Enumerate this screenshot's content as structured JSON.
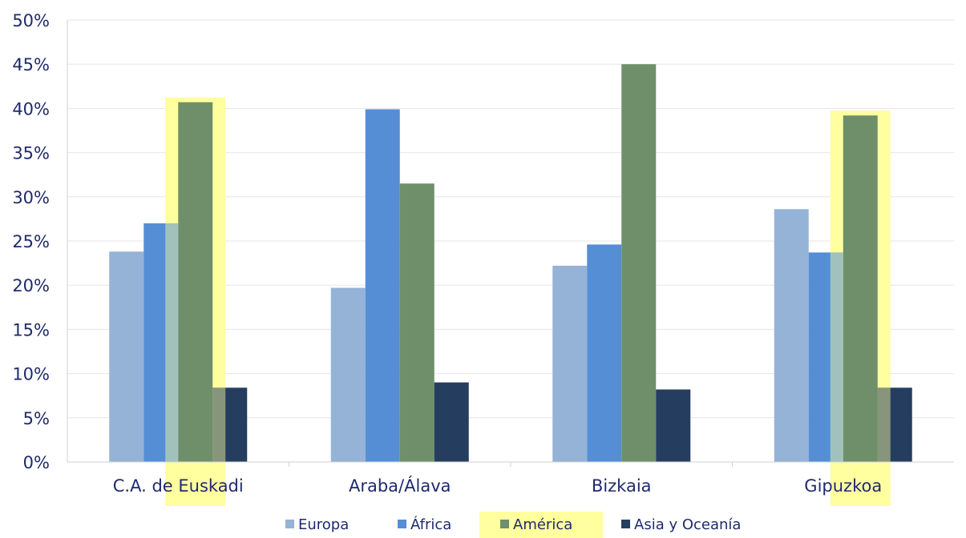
{
  "chart_data": {
    "type": "bar",
    "title": "",
    "xlabel": "",
    "ylabel": "",
    "ylim": [
      0,
      50
    ],
    "yticks": [
      0,
      5,
      10,
      15,
      20,
      25,
      30,
      35,
      40,
      45,
      50
    ],
    "ytick_labels": [
      "0%",
      "5%",
      "10%",
      "15%",
      "20%",
      "25%",
      "30%",
      "35%",
      "40%",
      "45%",
      "50%"
    ],
    "grid": true,
    "legend_placement": "bottom",
    "categories": [
      "C.A. de Euskadi",
      "Araba/Álava",
      "Bizkaia",
      "Gipuzkoa"
    ],
    "series": [
      {
        "name": "Europa",
        "color": "#95b3d7",
        "values": [
          23.8,
          19.7,
          22.2,
          28.6
        ]
      },
      {
        "name": "África",
        "color": "#558ed5",
        "values": [
          27.0,
          39.9,
          24.6,
          23.7
        ]
      },
      {
        "name": "América",
        "color": "#6f8f6a",
        "values": [
          40.7,
          31.5,
          45.0,
          39.2
        ]
      },
      {
        "name": "Asia y Oceanía",
        "color": "#253e5f",
        "values": [
          8.4,
          9.0,
          8.2,
          8.4
        ]
      }
    ],
    "highlight": {
      "series": "América",
      "categories": [
        "C.A. de Euskadi",
        "Gipuzkoa"
      ],
      "color": "#ffffa0"
    }
  }
}
